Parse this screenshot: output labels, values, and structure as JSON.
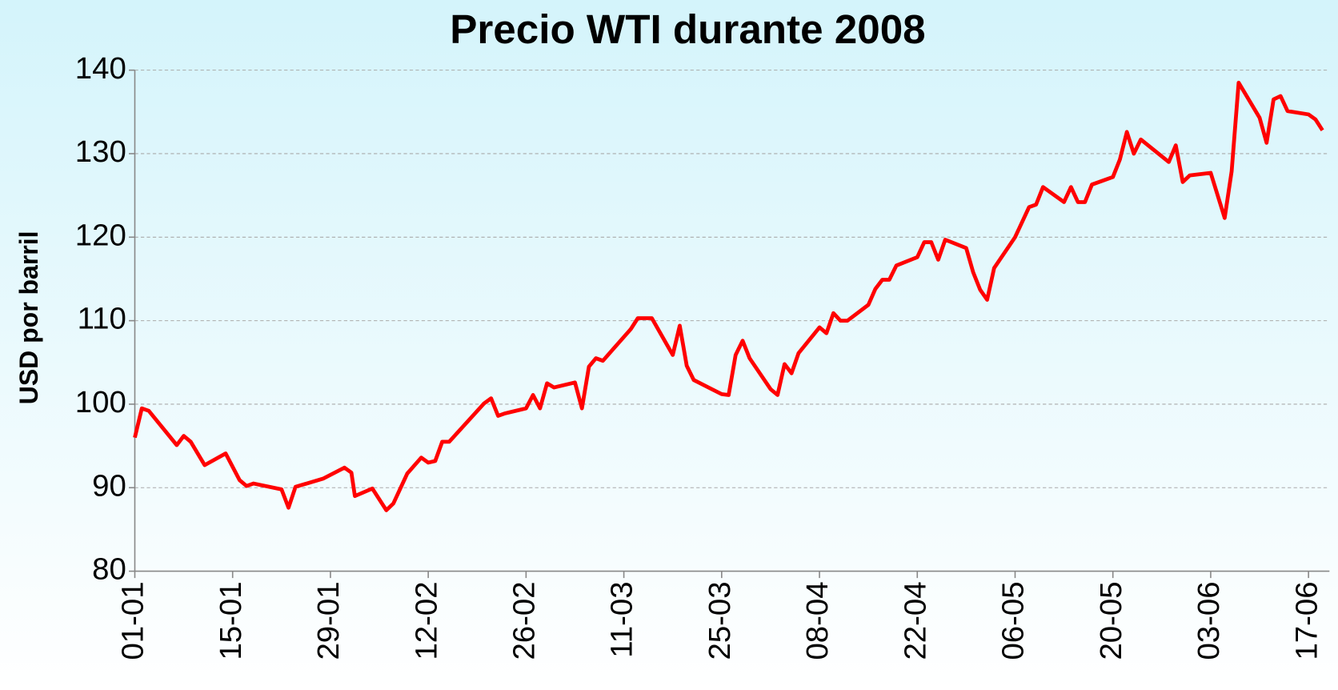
{
  "chart_data": {
    "type": "line",
    "title": "Precio WTI durante 2008",
    "y_label": "USD por barril",
    "x": [
      0,
      1,
      2,
      6,
      7,
      8,
      10,
      13,
      15,
      16,
      17,
      21,
      22,
      23,
      27,
      30,
      31,
      31.5,
      34,
      36,
      37,
      39,
      41,
      42,
      43,
      44,
      45,
      50,
      51,
      52,
      53,
      56,
      57,
      58,
      59,
      60,
      63,
      64,
      65,
      66,
      67,
      71,
      72,
      74,
      77,
      78,
      79,
      80,
      84,
      85,
      86,
      87,
      88,
      91,
      92,
      93,
      94,
      95,
      98,
      99,
      100,
      101,
      102,
      105,
      106,
      107,
      108,
      109,
      112,
      113,
      114,
      115,
      116,
      119,
      120,
      121,
      122,
      123,
      126,
      128,
      129,
      130,
      133,
      134,
      135,
      136,
      137,
      140,
      141,
      142,
      143,
      144,
      148,
      149,
      150,
      151,
      154,
      156,
      157,
      158,
      161,
      162,
      163,
      164,
      165,
      168,
      169,
      170
    ],
    "series": [
      {
        "name": "WTI",
        "color": "#ff0000",
        "values": [
          96.0,
          99.5,
          99.2,
          95.1,
          96.2,
          95.5,
          92.7,
          94.1,
          90.9,
          90.2,
          90.5,
          89.8,
          87.6,
          90.1,
          91.1,
          92.4,
          91.8,
          89.0,
          89.9,
          87.3,
          88.1,
          91.7,
          93.6,
          93.0,
          93.2,
          95.5,
          95.5,
          100.1,
          100.7,
          98.6,
          98.9,
          99.5,
          101.1,
          99.5,
          102.5,
          102.0,
          102.6,
          99.5,
          104.5,
          105.5,
          105.2,
          109.0,
          110.3,
          110.3,
          105.9,
          109.4,
          104.6,
          102.9,
          101.2,
          101.1,
          105.9,
          107.6,
          105.5,
          101.8,
          101.1,
          104.8,
          103.7,
          106.1,
          109.2,
          108.5,
          110.9,
          110.0,
          110.0,
          111.9,
          113.8,
          114.9,
          114.9,
          116.6,
          117.6,
          119.4,
          119.4,
          117.3,
          119.7,
          118.7,
          115.8,
          113.7,
          112.5,
          116.3,
          120.0,
          123.6,
          123.9,
          126.0,
          124.2,
          126.0,
          124.2,
          124.2,
          126.3,
          127.2,
          129.3,
          132.6,
          130.0,
          131.7,
          129.0,
          131.0,
          126.6,
          127.4,
          127.7,
          122.3,
          127.9,
          138.5,
          134.3,
          131.3,
          136.5,
          136.9,
          135.1,
          134.7,
          134.1,
          132.8
        ]
      }
    ],
    "xlim": [
      0,
      171
    ],
    "xticks": [
      {
        "value": 0,
        "label": "01-01"
      },
      {
        "value": 14,
        "label": "15-01"
      },
      {
        "value": 28,
        "label": "29-01"
      },
      {
        "value": 42,
        "label": "12-02"
      },
      {
        "value": 56,
        "label": "26-02"
      },
      {
        "value": 70,
        "label": "11-03"
      },
      {
        "value": 84,
        "label": "25-03"
      },
      {
        "value": 98,
        "label": "08-04"
      },
      {
        "value": 112,
        "label": "22-04"
      },
      {
        "value": 126,
        "label": "06-05"
      },
      {
        "value": 140,
        "label": "20-05"
      },
      {
        "value": 154,
        "label": "03-06"
      },
      {
        "value": 168,
        "label": "17-06"
      }
    ],
    "ylim": [
      80,
      140
    ],
    "yticks": [
      80,
      90,
      100,
      110,
      120,
      130,
      140
    ],
    "grid": true
  }
}
